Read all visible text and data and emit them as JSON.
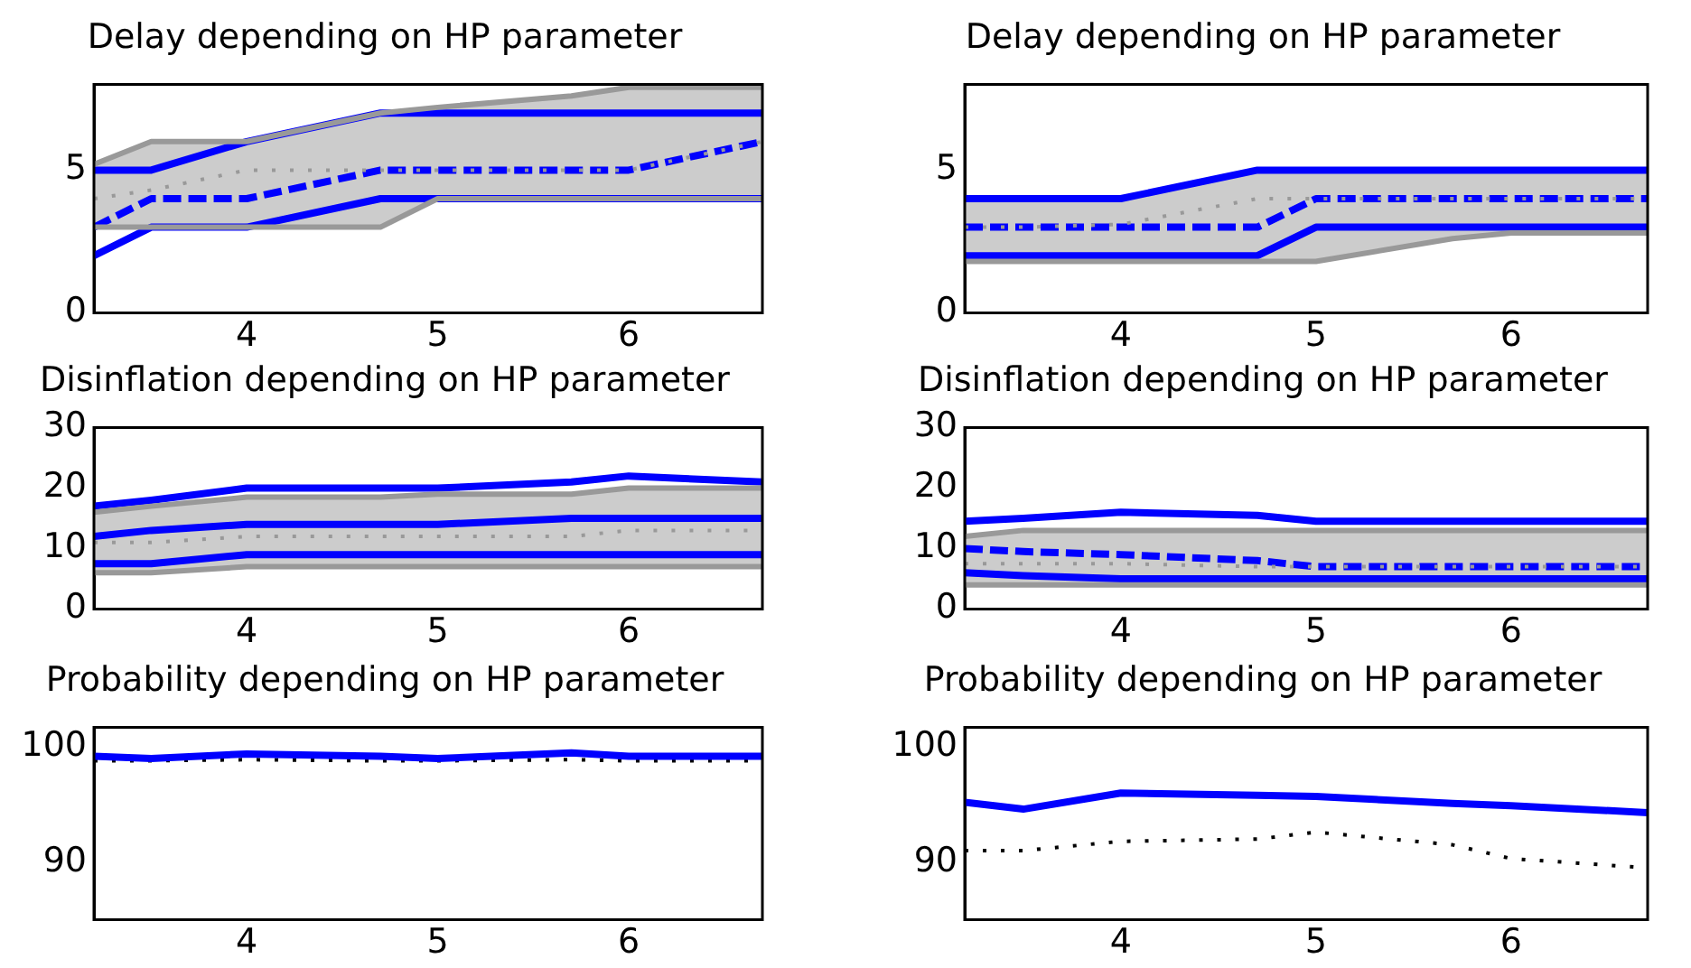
{
  "chart_data": [
    {
      "type": "line",
      "title": "Delay depending on HP parameter",
      "x": [
        3.2,
        3.5,
        4,
        4.7,
        5,
        5.7,
        6,
        6.7
      ],
      "xlim": [
        3.2,
        6.7
      ],
      "xticks": [
        4,
        5,
        6
      ],
      "ylim": [
        0,
        8
      ],
      "yticks": [
        0,
        5
      ],
      "grid": false,
      "series": [
        {
          "color": "#999999",
          "line_style": "dotted",
          "values": [
            4,
            4.3,
            5,
            5,
            5,
            5,
            5,
            6
          ],
          "lower": [
            3,
            3,
            3,
            3,
            4,
            4,
            4,
            4
          ],
          "upper": [
            5.2,
            6,
            6,
            7,
            7.2,
            7.6,
            7.9,
            7.9
          ]
        },
        {
          "color": "#999999",
          "values": [
            5.2,
            6,
            6,
            7,
            7.2,
            7.6,
            7.9,
            7.9
          ]
        },
        {
          "color": "#999999",
          "values": [
            3,
            3,
            3,
            3,
            4,
            4,
            4,
            4
          ]
        },
        {
          "color": "#0000ff",
          "values": [
            5,
            5,
            6,
            7,
            7,
            7,
            7,
            7
          ]
        },
        {
          "color": "#0000ff",
          "line_style": "dashed",
          "values": [
            3,
            4,
            4,
            5,
            5,
            5,
            5,
            6
          ]
        },
        {
          "color": "#0000ff",
          "values": [
            2,
            3,
            3,
            4,
            4,
            4,
            4,
            4
          ]
        }
      ]
    },
    {
      "type": "line",
      "title": "Delay depending on HP parameter",
      "x": [
        3.2,
        3.5,
        4,
        4.7,
        5,
        5.7,
        6,
        6.7
      ],
      "xlim": [
        3.2,
        6.7
      ],
      "xticks": [
        4,
        5,
        6
      ],
      "ylim": [
        0,
        8
      ],
      "yticks": [
        0,
        5
      ],
      "grid": false,
      "series": [
        {
          "color": "#999999",
          "line_style": "dotted",
          "values": [
            3,
            3,
            3.1,
            4,
            4,
            4,
            4,
            4
          ],
          "lower": [
            1.8,
            1.8,
            1.8,
            1.8,
            1.8,
            2.6,
            2.8,
            2.8
          ],
          "upper": [
            4,
            4,
            4,
            5,
            5,
            5,
            5,
            5
          ]
        },
        {
          "color": "#999999",
          "values": [
            1.8,
            1.8,
            1.8,
            1.8,
            1.8,
            2.6,
            2.8,
            2.8
          ]
        },
        {
          "color": "#0000ff",
          "values": [
            4,
            4,
            4,
            5,
            5,
            5,
            5,
            5
          ]
        },
        {
          "color": "#0000ff",
          "line_style": "dashed",
          "values": [
            3,
            3,
            3,
            3,
            4,
            4,
            4,
            4
          ]
        },
        {
          "color": "#0000ff",
          "values": [
            2,
            2,
            2,
            2,
            3,
            3,
            3,
            3
          ]
        }
      ]
    },
    {
      "type": "line",
      "title": "Disinflation depending on HP parameter",
      "x": [
        3.2,
        3.5,
        4,
        4.7,
        5,
        5.7,
        6,
        6.7
      ],
      "xlim": [
        3.2,
        6.7
      ],
      "xticks": [
        4,
        5,
        6
      ],
      "ylim": [
        0,
        30
      ],
      "yticks": [
        0,
        10,
        20,
        30
      ],
      "grid": false,
      "series": [
        {
          "color": "#999999",
          "line_style": "dotted",
          "values": [
            11,
            11,
            12,
            12,
            12,
            12,
            13,
            13
          ],
          "lower": [
            6,
            6,
            7,
            7,
            7,
            7,
            7,
            7
          ],
          "upper": [
            16,
            17,
            18.5,
            18.5,
            19,
            19,
            20,
            20
          ]
        },
        {
          "color": "#999999",
          "values": [
            16,
            17,
            18.5,
            18.5,
            19,
            19,
            20,
            20
          ]
        },
        {
          "color": "#999999",
          "values": [
            6,
            6,
            7,
            7,
            7,
            7,
            7,
            7
          ]
        },
        {
          "color": "#0000ff",
          "values": [
            17,
            18,
            20,
            20,
            20,
            21,
            22,
            21
          ]
        },
        {
          "color": "#0000ff",
          "values": [
            12,
            13,
            14,
            14,
            14,
            15,
            15,
            15
          ]
        },
        {
          "color": "#0000ff",
          "values": [
            7.5,
            7.5,
            9,
            9,
            9,
            9,
            9,
            9
          ]
        }
      ]
    },
    {
      "type": "line",
      "title": "Disinflation depending on HP parameter",
      "x": [
        3.2,
        3.5,
        4,
        4.7,
        5,
        5.7,
        6,
        6.7
      ],
      "xlim": [
        3.2,
        6.7
      ],
      "xticks": [
        4,
        5,
        6
      ],
      "ylim": [
        0,
        30
      ],
      "yticks": [
        0,
        10,
        20,
        30
      ],
      "grid": false,
      "series": [
        {
          "color": "#999999",
          "line_style": "dotted",
          "values": [
            7.5,
            7.5,
            7.5,
            7,
            7,
            7,
            7,
            7
          ],
          "lower": [
            4,
            4,
            4,
            4,
            4,
            4,
            4,
            4
          ],
          "upper": [
            12,
            13,
            13,
            13,
            13,
            13,
            13,
            13
          ]
        },
        {
          "color": "#999999",
          "values": [
            12,
            13,
            13,
            13,
            13,
            13,
            13,
            13
          ]
        },
        {
          "color": "#999999",
          "values": [
            4,
            4,
            4,
            4,
            4,
            4,
            4,
            4
          ]
        },
        {
          "color": "#0000ff",
          "values": [
            14.5,
            15,
            16,
            15.5,
            14.5,
            14.5,
            14.5,
            14.5
          ]
        },
        {
          "color": "#0000ff",
          "line_style": "dashed",
          "values": [
            10,
            9.5,
            9,
            8,
            7,
            7,
            7,
            7
          ]
        },
        {
          "color": "#0000ff",
          "values": [
            6,
            5.5,
            5,
            5,
            5,
            5,
            5,
            5
          ]
        }
      ]
    },
    {
      "type": "line",
      "title": "Probability depending on HP parameter",
      "x": [
        3.2,
        3.5,
        4,
        4.7,
        5,
        5.7,
        6,
        6.7
      ],
      "xlim": [
        3.2,
        6.7
      ],
      "xticks": [
        4,
        5,
        6
      ],
      "ylim": [
        85,
        101.7
      ],
      "yticks": [
        90,
        100
      ],
      "grid": false,
      "series": [
        {
          "color": "#0000ff",
          "values": [
            99.2,
            99,
            99.4,
            99.2,
            99,
            99.5,
            99.2,
            99.2
          ]
        },
        {
          "color": "#000000",
          "line_style": "dotted",
          "values": [
            98.8,
            98.8,
            98.9,
            98.8,
            98.8,
            98.9,
            98.8,
            98.8
          ]
        }
      ]
    },
    {
      "type": "line",
      "title": "Probability depending on HP parameter",
      "x": [
        3.2,
        3.5,
        4,
        4.7,
        5,
        5.7,
        6,
        6.7
      ],
      "xlim": [
        3.2,
        6.7
      ],
      "xticks": [
        4,
        5,
        6
      ],
      "ylim": [
        85,
        101.7
      ],
      "yticks": [
        90,
        100
      ],
      "grid": false,
      "series": [
        {
          "color": "#0000ff",
          "values": [
            95.2,
            94.6,
            96,
            95.8,
            95.7,
            95.1,
            94.9,
            94.3
          ]
        },
        {
          "color": "#000000",
          "line_style": "dotted",
          "values": [
            91,
            91,
            91.8,
            92,
            92.6,
            91.5,
            90.3,
            89.5
          ]
        }
      ]
    }
  ]
}
